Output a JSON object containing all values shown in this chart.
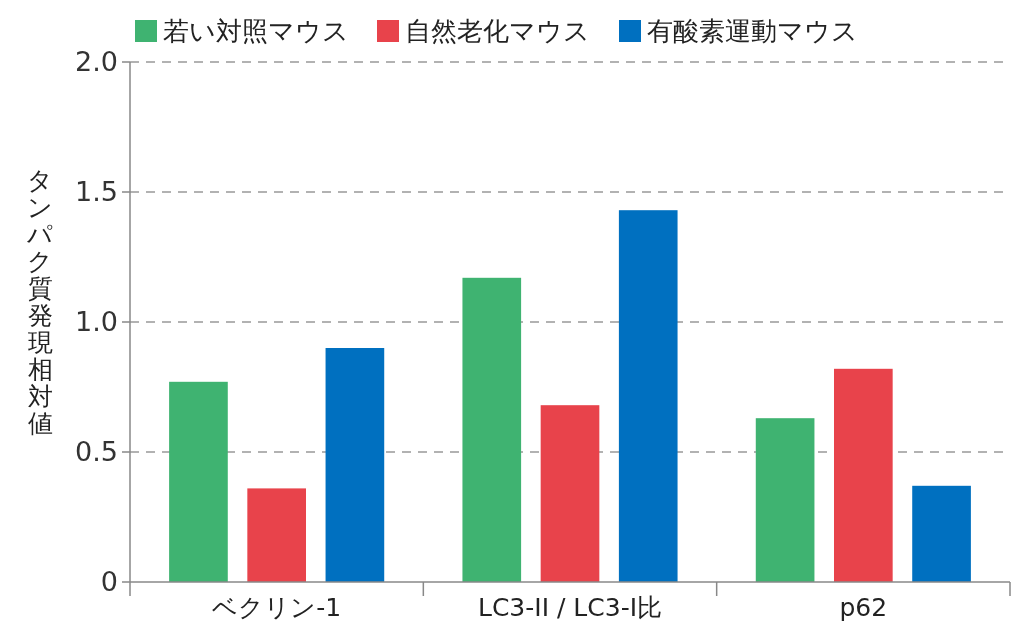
{
  "chart_data": {
    "type": "bar",
    "ylabel": "タンパク質発現相対値",
    "categories": [
      "ベクリン-1",
      "LC3-II / LC3-I比",
      "p62"
    ],
    "series": [
      {
        "name": "若い対照マウス",
        "color": "#3fb371",
        "values": [
          0.77,
          1.17,
          0.63
        ]
      },
      {
        "name": "自然老化マウス",
        "color": "#e8434b",
        "values": [
          0.36,
          0.68,
          0.82
        ]
      },
      {
        "name": "有酸素運動マウス",
        "color": "#0070c0",
        "values": [
          0.9,
          1.43,
          0.37
        ]
      }
    ],
    "ylim": [
      0,
      2
    ],
    "yticks": [
      0,
      0.5,
      {
        "value": 1,
        "label": "1.0"
      },
      1.5,
      {
        "value": 2,
        "label": "2.0"
      }
    ],
    "grid": "y",
    "legend": "top"
  }
}
